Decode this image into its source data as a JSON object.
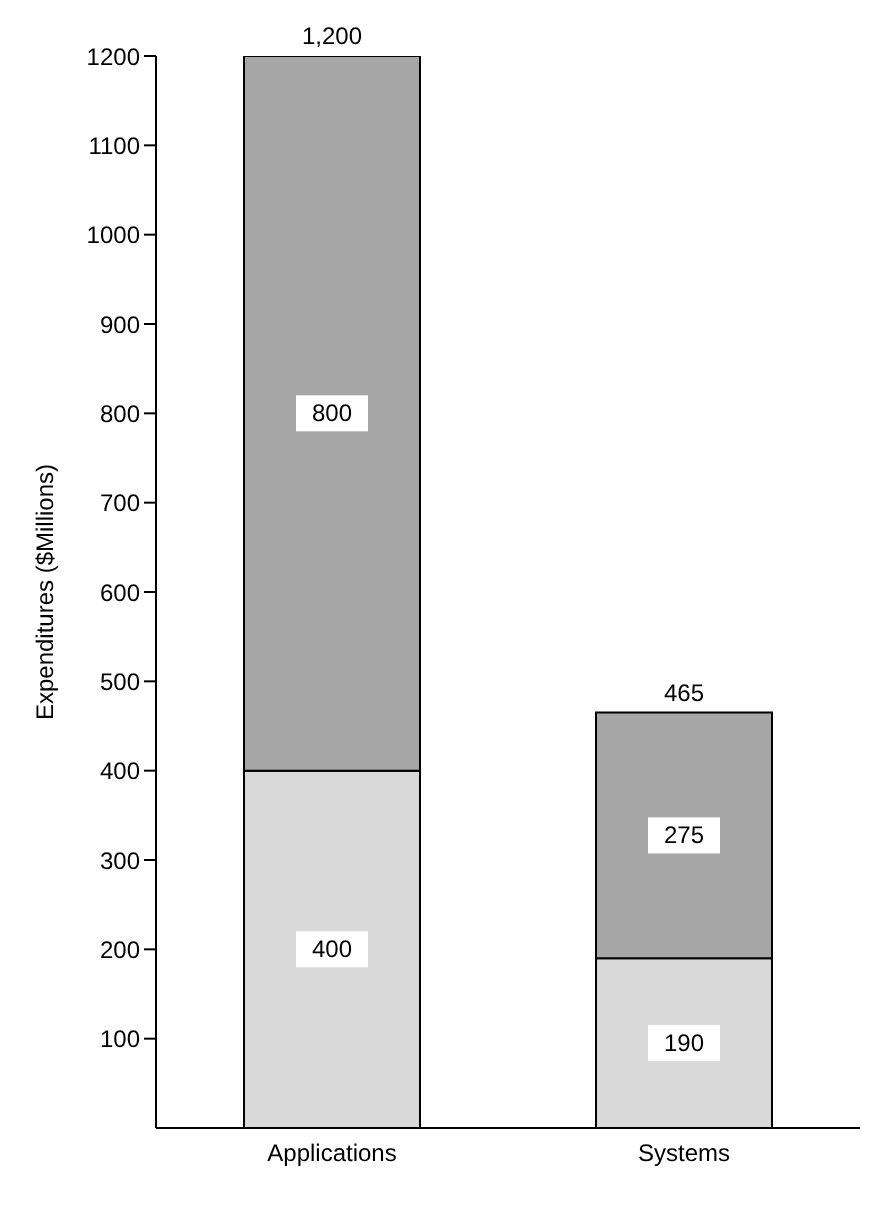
{
  "chart_data": {
    "type": "bar",
    "ylabel": "Expenditures ($Millions)",
    "categories": [
      "Applications",
      "Systems"
    ],
    "stacked": true,
    "series": [
      {
        "color": "#d9d9d9",
        "values": [
          400,
          190
        ]
      },
      {
        "color": "#a6a6a6",
        "values": [
          800,
          275
        ]
      }
    ],
    "ylim": [
      0,
      1200
    ],
    "yticks": [
      100,
      200,
      300,
      400,
      500,
      600,
      700,
      800,
      900,
      1000,
      1100,
      1200
    ],
    "data_labels": true,
    "totals": [
      "1,200",
      "465"
    ],
    "grid": false,
    "legend": false
  }
}
